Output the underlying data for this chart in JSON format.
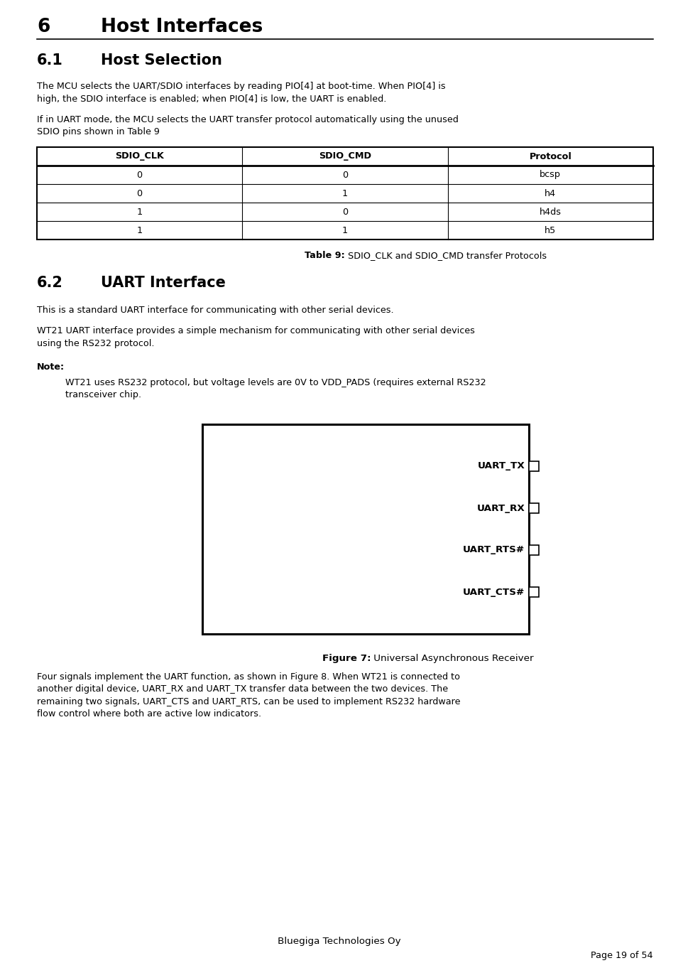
{
  "title_number": "6",
  "title_text": "Host Interfaces",
  "section_6_1_number": "6.1",
  "section_6_1_text": "Host Selection",
  "para1_lines": [
    "The MCU selects the UART/SDIO interfaces by reading PIO[4] at boot-time. When PIO[4] is",
    "high, the SDIO interface is enabled; when PIO[4] is low, the UART is enabled."
  ],
  "para2_lines": [
    "If in UART mode, the MCU selects the UART transfer protocol automatically using the unused",
    "SDIO pins shown in Table 9"
  ],
  "table_headers": [
    "SDIO_CLK",
    "SDIO_CMD",
    "Protocol"
  ],
  "table_rows": [
    [
      "0",
      "0",
      "bcsp"
    ],
    [
      "0",
      "1",
      "h4"
    ],
    [
      "1",
      "0",
      "h4ds"
    ],
    [
      "1",
      "1",
      "h5"
    ]
  ],
  "table_caption_bold": "Table 9:",
  "table_caption_normal": " SDIO_CLK and SDIO_CMD transfer Protocols",
  "section_6_2_number": "6.2",
  "section_6_2_text": "UART Interface",
  "para3": "This is a standard UART interface for communicating with other serial devices.",
  "para4_lines": [
    "WT21 UART interface provides a simple mechanism for communicating with other serial devices",
    "using the RS232 protocol."
  ],
  "note_label": "Note:",
  "note_lines": [
    "WT21 uses RS232 protocol, but voltage levels are 0V to VDD_PADS (requires external RS232",
    "transceiver chip."
  ],
  "uart_signals": [
    "UART_TX",
    "UART_RX",
    "UART_RTS#",
    "UART_CTS#"
  ],
  "figure_caption_bold": "Figure 7:",
  "figure_caption_normal": " Universal Asynchronous Receiver",
  "para5_lines": [
    "Four signals implement the UART function, as shown in Figure 8. When WT21 is connected to",
    "another digital device, UART_RX and UART_TX transfer data between the two devices. The",
    "remaining two signals, UART_CTS and UART_RTS, can be used to implement RS232 hardware",
    "flow control where both are active low indicators."
  ],
  "footer_center": "Bluegiga Technologies Oy",
  "footer_right": "Page 19 of 54",
  "bg_color": "#ffffff"
}
